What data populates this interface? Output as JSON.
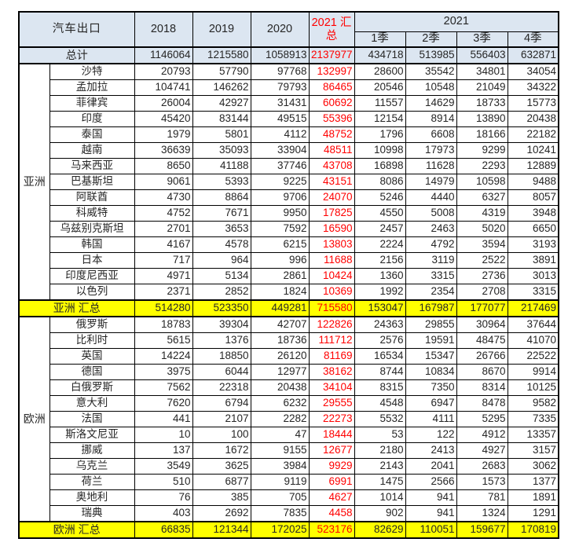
{
  "colors": {
    "header_bg": "#DCE6F1",
    "summary_bg": "#FFFF00",
    "accent_red": "#FF0000",
    "border": "#000000"
  },
  "header": {
    "corner": "汽车出口",
    "year_cols": [
      "2018",
      "2019",
      "2020"
    ],
    "total_col": "2021 汇总",
    "year_group": "2021",
    "quarters": [
      "1季",
      "2季",
      "3季",
      "4季"
    ]
  },
  "total_row": {
    "label": "总计",
    "values": [
      1146064,
      1215580,
      1058913,
      2137977,
      434718,
      513985,
      556403,
      632871
    ]
  },
  "groups": [
    {
      "name": "亚洲",
      "rows": [
        {
          "label": "沙特",
          "values": [
            20793,
            57790,
            97768,
            132997,
            28600,
            35542,
            34801,
            34054
          ]
        },
        {
          "label": "孟加拉",
          "values": [
            104741,
            146262,
            79793,
            86465,
            20546,
            10548,
            21049,
            34322
          ]
        },
        {
          "label": "菲律宾",
          "values": [
            26004,
            42927,
            31431,
            60692,
            11557,
            14629,
            18733,
            15773
          ]
        },
        {
          "label": "印度",
          "values": [
            45420,
            83144,
            49515,
            55396,
            12154,
            8914,
            13890,
            20438
          ]
        },
        {
          "label": "泰国",
          "values": [
            1979,
            5801,
            4112,
            48752,
            1796,
            6608,
            18166,
            22182
          ]
        },
        {
          "label": "越南",
          "values": [
            36639,
            35093,
            33904,
            48511,
            10998,
            17973,
            9299,
            10241
          ]
        },
        {
          "label": "马来西亚",
          "values": [
            8650,
            41188,
            37746,
            43708,
            16898,
            11628,
            2293,
            12889
          ]
        },
        {
          "label": "巴基斯坦",
          "values": [
            9061,
            5393,
            9225,
            43151,
            8086,
            14979,
            10598,
            9488
          ]
        },
        {
          "label": "阿联酋",
          "values": [
            4730,
            8864,
            9706,
            24070,
            5246,
            4440,
            6327,
            8057
          ]
        },
        {
          "label": "科威特",
          "values": [
            4752,
            7671,
            9950,
            17825,
            4550,
            5008,
            4319,
            3948
          ]
        },
        {
          "label": "乌兹别克斯坦",
          "values": [
            2701,
            3653,
            7592,
            16590,
            2457,
            2463,
            5020,
            6650
          ]
        },
        {
          "label": "韩国",
          "values": [
            4167,
            4578,
            6215,
            13803,
            2224,
            4792,
            3594,
            3193
          ]
        },
        {
          "label": "日本",
          "values": [
            717,
            964,
            996,
            11688,
            2156,
            3119,
            2522,
            3891
          ]
        },
        {
          "label": "印度尼西亚",
          "values": [
            4971,
            5134,
            2861,
            10424,
            1360,
            3315,
            2736,
            3013
          ]
        },
        {
          "label": "以色列",
          "values": [
            2371,
            2852,
            1824,
            10369,
            1992,
            2354,
            2708,
            3315
          ]
        }
      ],
      "summary": {
        "label": "亚洲 汇总",
        "values": [
          514280,
          523350,
          449281,
          715580,
          153047,
          167987,
          177077,
          217469
        ]
      }
    },
    {
      "name": "欧洲",
      "rows": [
        {
          "label": "俄罗斯",
          "values": [
            18783,
            39304,
            42707,
            122826,
            24363,
            29855,
            30964,
            37644
          ]
        },
        {
          "label": "比利时",
          "values": [
            5615,
            1376,
            18736,
            111712,
            2576,
            19591,
            48475,
            41070
          ]
        },
        {
          "label": "英国",
          "values": [
            14224,
            18850,
            26120,
            81169,
            16534,
            15347,
            26766,
            22522
          ]
        },
        {
          "label": "德国",
          "values": [
            3975,
            6044,
            12977,
            38162,
            8744,
            10834,
            8670,
            9914
          ]
        },
        {
          "label": "白俄罗斯",
          "values": [
            7562,
            22318,
            20438,
            34104,
            8315,
            7350,
            8314,
            10125
          ]
        },
        {
          "label": "意大利",
          "values": [
            7620,
            6794,
            6232,
            29555,
            4548,
            6947,
            8478,
            9582
          ]
        },
        {
          "label": "法国",
          "values": [
            441,
            2107,
            2282,
            22273,
            5532,
            4111,
            5295,
            7335
          ]
        },
        {
          "label": "斯洛文尼亚",
          "values": [
            10,
            100,
            47,
            18444,
            53,
            122,
            4912,
            13357
          ]
        },
        {
          "label": "挪威",
          "values": [
            137,
            1672,
            9155,
            12677,
            2180,
            2413,
            4927,
            3157
          ]
        },
        {
          "label": "乌克兰",
          "values": [
            3549,
            3625,
            3984,
            9929,
            2143,
            2041,
            2683,
            3062
          ]
        },
        {
          "label": "荷兰",
          "values": [
            510,
            6877,
            9119,
            6991,
            1475,
            2566,
            1573,
            1377
          ]
        },
        {
          "label": "奥地利",
          "values": [
            76,
            385,
            705,
            4627,
            1014,
            941,
            781,
            1891
          ]
        },
        {
          "label": "瑞典",
          "values": [
            403,
            2692,
            7835,
            4458,
            902,
            941,
            1324,
            1291
          ]
        }
      ],
      "summary": {
        "label": "欧洲 汇总",
        "values": [
          66835,
          121344,
          172025,
          523176,
          82629,
          110051,
          159677,
          170819
        ]
      }
    }
  ]
}
